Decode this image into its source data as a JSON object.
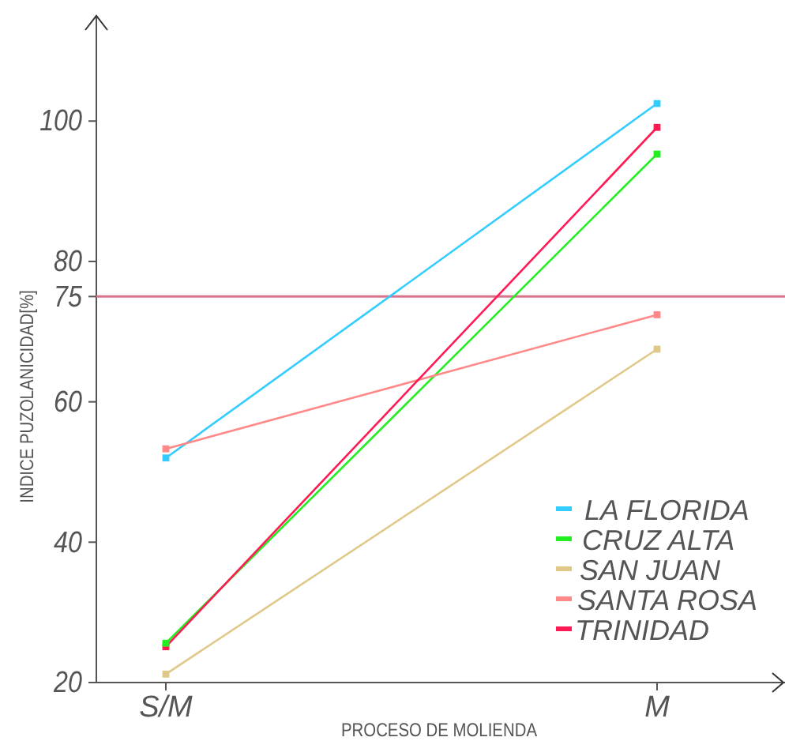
{
  "chart_data": {
    "type": "line",
    "xlabel": "PROCESO DE MOLIENDA",
    "ylabel": "INDICE PUZOLANICIDAD[%]",
    "categories": [
      "S/M",
      "M"
    ],
    "series": [
      {
        "name": "LA FLORIDA",
        "color": "#33ccff",
        "values": [
          52,
          102.5
        ]
      },
      {
        "name": "CRUZ ALTA",
        "color": "#22ee22",
        "values": [
          25.6,
          95.3
        ]
      },
      {
        "name": "SAN JUAN",
        "color": "#e0c888",
        "values": [
          21.2,
          67.5
        ]
      },
      {
        "name": "SANTA ROSA",
        "color": "#ff8888",
        "values": [
          53.3,
          72.4
        ]
      },
      {
        "name": "TRINIDAD",
        "color": "#ff1a55",
        "values": [
          25.1,
          99.1
        ]
      }
    ],
    "ylim": [
      20,
      115
    ],
    "yticks": [
      20,
      40,
      60,
      75,
      80,
      100
    ],
    "ref_lines": [
      {
        "axis": "y",
        "value": 75,
        "color": "#d9738a"
      }
    ],
    "legend": "bottom right",
    "marker": "square",
    "line_style": "solid",
    "grid": false
  }
}
